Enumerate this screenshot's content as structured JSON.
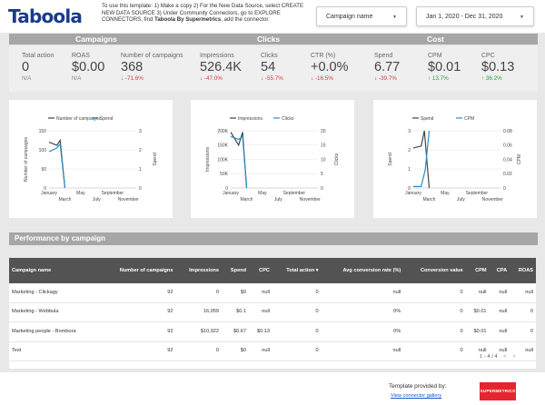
{
  "header": {
    "logo": "Taboola",
    "instructions_1": "To use this template:   1) Make a copy   2) For the New Data Source, select CREATE NEW DATA SOURCE   3) Under Community Connectors, go to EXPLORE CONNECTORS, find ",
    "instructions_bold": "Taboola By Supermetrics",
    "instructions_2": ", add the connector.",
    "campaign_dropdown": "Campaign name",
    "date_dropdown": "Jan 1, 2020 - Dec 31, 2020"
  },
  "sections": {
    "campaigns": "Campaigns",
    "clicks": "Clicks",
    "cost": "Cost"
  },
  "kpis": [
    {
      "label": "Total action",
      "value": "0",
      "delta": "N/A",
      "trend": "na"
    },
    {
      "label": "ROAS",
      "value": "$0.00",
      "delta": "N/A",
      "trend": "na"
    },
    {
      "label": "Number of campaigns",
      "value": "368",
      "delta": "-71.6%",
      "trend": "down-bad"
    },
    {
      "label": "Impressions",
      "value": "526.4K",
      "delta": "-47.0%",
      "trend": "down-bad"
    },
    {
      "label": "Clicks",
      "value": "54",
      "delta": "-55.7%",
      "trend": "down-bad"
    },
    {
      "label": "CTR (%)",
      "value": "+0.0%",
      "delta": "-16.5%",
      "trend": "down-bad"
    },
    {
      "label": "Spend",
      "value": "6.77",
      "delta": "-39.7%",
      "trend": "down-bad"
    },
    {
      "label": "CPM",
      "value": "$0.01",
      "delta": "13.7%",
      "trend": "up-good"
    },
    {
      "label": "CPC",
      "value": "$0.13",
      "delta": "36.2%",
      "trend": "up-good"
    }
  ],
  "chart_data": [
    {
      "type": "line",
      "legend": [
        "Number of campaigns",
        "Spend"
      ],
      "ylabel": "Number of campaigns",
      "y2label": "Spend",
      "x_ticks_top": [
        "January",
        "May",
        "September"
      ],
      "x_ticks_bottom": [
        "March",
        "July",
        "November"
      ],
      "y_ticks": [
        "0",
        "50",
        "100",
        "150"
      ],
      "y2_ticks": [
        "0",
        "1",
        "2",
        "3"
      ],
      "ylim": [
        0,
        150
      ],
      "y2lim": [
        0,
        3
      ],
      "series": [
        {
          "name": "Number of campaigns",
          "axis": "left",
          "color": "#444444",
          "points": [
            [
              1,
              120
            ],
            [
              2,
              112
            ],
            [
              2.4,
              125
            ],
            [
              3,
              0
            ]
          ]
        },
        {
          "name": "Spend",
          "axis": "right",
          "color": "#2a8fbd",
          "points": [
            [
              1,
              1.9
            ],
            [
              2,
              2.1
            ],
            [
              2.4,
              2.3
            ],
            [
              3,
              0
            ]
          ]
        }
      ]
    },
    {
      "type": "line",
      "legend": [
        "Impressions",
        "Clicks"
      ],
      "ylabel": "Impressions",
      "y2label": "Clicks",
      "x_ticks_top": [
        "January",
        "May",
        "September"
      ],
      "x_ticks_bottom": [
        "March",
        "July",
        "November"
      ],
      "y_ticks": [
        "0",
        "50K",
        "100K",
        "150K",
        "200K"
      ],
      "y2_ticks": [
        "0",
        "5",
        "10",
        "15",
        "20"
      ],
      "ylim": [
        0,
        200000
      ],
      "y2lim": [
        0,
        20
      ],
      "series": [
        {
          "name": "Impressions",
          "axis": "left",
          "color": "#444444",
          "points": [
            [
              1,
              195000
            ],
            [
              2,
              150000
            ],
            [
              2.5,
              195000
            ],
            [
              3,
              0
            ]
          ]
        },
        {
          "name": "Clicks",
          "axis": "right",
          "color": "#2a8fbd",
          "points": [
            [
              1,
              18
            ],
            [
              2,
              17
            ],
            [
              2.5,
              18
            ],
            [
              3,
              0
            ]
          ]
        }
      ]
    },
    {
      "type": "line",
      "legend": [
        "Spend",
        "CPM"
      ],
      "ylabel": "Spend",
      "y2label": "CPM",
      "x_ticks_top": [
        "January",
        "May",
        "September"
      ],
      "x_ticks_bottom": [
        "March",
        "July",
        "November"
      ],
      "y_ticks": [
        "0",
        "1",
        "2",
        "3"
      ],
      "y2_ticks": [
        "0",
        "0.02",
        "0.04",
        "0.06",
        "0.08"
      ],
      "ylim": [
        0,
        3
      ],
      "y2lim": [
        0,
        0.08
      ],
      "series": [
        {
          "name": "Spend",
          "axis": "left",
          "color": "#444444",
          "points": [
            [
              1,
              2.1
            ],
            [
              2,
              2.2
            ],
            [
              2.4,
              3
            ],
            [
              3,
              0
            ]
          ]
        },
        {
          "name": "CPM",
          "axis": "right",
          "color": "#2a8fbd",
          "points": [
            [
              1,
              0.002
            ],
            [
              2,
              0.002
            ],
            [
              2.5,
              0.025
            ],
            [
              3,
              0.08
            ]
          ]
        }
      ]
    }
  ],
  "performance": {
    "title": "Performance by campaign",
    "columns": [
      "Campaign name",
      "Number of campaigns",
      "Impressions",
      "Spend",
      "CPC",
      "Total action ▾",
      "Avg conversion rate (%)",
      "Conversion value",
      "CPM",
      "CPA",
      "ROAS"
    ],
    "rows": [
      [
        "Marketing - Clickagy",
        "92",
        "0",
        "$0",
        "null",
        "0",
        "null",
        "0",
        "null",
        "null",
        "null"
      ],
      [
        "Marketing - Webbula",
        "92",
        "16,059",
        "$0.1",
        "null",
        "0",
        "0%",
        "0",
        "$0.01",
        "null",
        "0"
      ],
      [
        "Marketing people - Bombora",
        "92",
        "$10,922",
        "$6.67",
        "$0.13",
        "0",
        "0%",
        "0",
        "$0.01",
        "null",
        "0"
      ],
      [
        "Test",
        "92",
        "0",
        "$0",
        "null",
        "0",
        "null",
        "0",
        "null",
        "null",
        "null"
      ]
    ],
    "pager": "1 - 4 / 4"
  },
  "footer": {
    "provided_by": "Template provided by:",
    "gallery_link": "View connector gallery",
    "brand": "SUPERMETRICS"
  }
}
